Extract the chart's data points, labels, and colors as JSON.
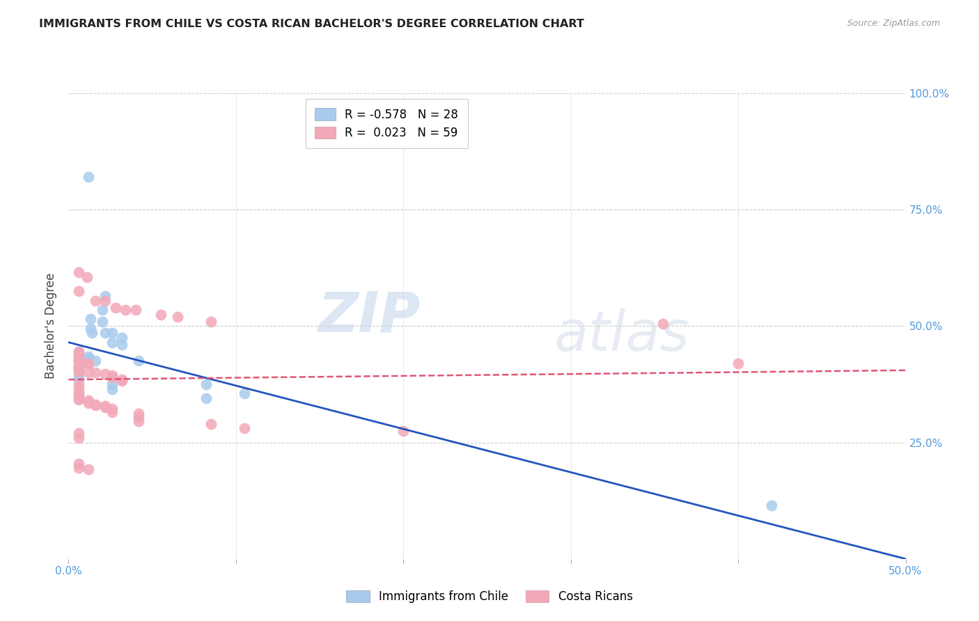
{
  "title": "IMMIGRANTS FROM CHILE VS COSTA RICAN BACHELOR'S DEGREE CORRELATION CHART",
  "source": "Source: ZipAtlas.com",
  "ylabel": "Bachelor's Degree",
  "legend_blue_r": "-0.578",
  "legend_blue_n": "28",
  "legend_pink_r": "0.023",
  "legend_pink_n": "59",
  "legend_blue_label": "Immigrants from Chile",
  "legend_pink_label": "Costa Ricans",
  "watermark_zip": "ZIP",
  "watermark_atlas": "atlas",
  "blue_color": "#A8CAED",
  "pink_color": "#F2A8B8",
  "blue_line_color": "#2255BB",
  "pink_line_color": "#E05575",
  "xlim": [
    0.0,
    0.5
  ],
  "ylim": [
    0.0,
    1.0
  ],
  "blue_points": [
    [
      0.012,
      0.82
    ],
    [
      0.022,
      0.565
    ],
    [
      0.02,
      0.535
    ],
    [
      0.013,
      0.515
    ],
    [
      0.02,
      0.51
    ],
    [
      0.013,
      0.495
    ],
    [
      0.014,
      0.485
    ],
    [
      0.022,
      0.485
    ],
    [
      0.026,
      0.485
    ],
    [
      0.032,
      0.475
    ],
    [
      0.026,
      0.465
    ],
    [
      0.032,
      0.46
    ],
    [
      0.006,
      0.445
    ],
    [
      0.012,
      0.435
    ],
    [
      0.012,
      0.43
    ],
    [
      0.006,
      0.425
    ],
    [
      0.016,
      0.425
    ],
    [
      0.042,
      0.425
    ],
    [
      0.006,
      0.415
    ],
    [
      0.006,
      0.405
    ],
    [
      0.006,
      0.395
    ],
    [
      0.006,
      0.385
    ],
    [
      0.026,
      0.375
    ],
    [
      0.082,
      0.375
    ],
    [
      0.026,
      0.365
    ],
    [
      0.105,
      0.355
    ],
    [
      0.082,
      0.345
    ],
    [
      0.42,
      0.115
    ]
  ],
  "pink_points": [
    [
      0.006,
      0.615
    ],
    [
      0.011,
      0.605
    ],
    [
      0.006,
      0.575
    ],
    [
      0.016,
      0.555
    ],
    [
      0.022,
      0.555
    ],
    [
      0.028,
      0.54
    ],
    [
      0.034,
      0.535
    ],
    [
      0.04,
      0.535
    ],
    [
      0.055,
      0.525
    ],
    [
      0.065,
      0.52
    ],
    [
      0.085,
      0.51
    ],
    [
      0.355,
      0.505
    ],
    [
      0.006,
      0.445
    ],
    [
      0.006,
      0.44
    ],
    [
      0.006,
      0.435
    ],
    [
      0.006,
      0.43
    ],
    [
      0.006,
      0.43
    ],
    [
      0.006,
      0.425
    ],
    [
      0.007,
      0.42
    ],
    [
      0.012,
      0.42
    ],
    [
      0.012,
      0.418
    ],
    [
      0.006,
      0.415
    ],
    [
      0.006,
      0.412
    ],
    [
      0.006,
      0.41
    ],
    [
      0.006,
      0.405
    ],
    [
      0.006,
      0.402
    ],
    [
      0.012,
      0.4
    ],
    [
      0.016,
      0.4
    ],
    [
      0.022,
      0.398
    ],
    [
      0.026,
      0.395
    ],
    [
      0.026,
      0.39
    ],
    [
      0.032,
      0.385
    ],
    [
      0.032,
      0.382
    ],
    [
      0.006,
      0.375
    ],
    [
      0.006,
      0.365
    ],
    [
      0.006,
      0.355
    ],
    [
      0.006,
      0.352
    ],
    [
      0.006,
      0.345
    ],
    [
      0.006,
      0.342
    ],
    [
      0.012,
      0.34
    ],
    [
      0.012,
      0.335
    ],
    [
      0.016,
      0.332
    ],
    [
      0.016,
      0.33
    ],
    [
      0.022,
      0.328
    ],
    [
      0.022,
      0.325
    ],
    [
      0.026,
      0.322
    ],
    [
      0.026,
      0.315
    ],
    [
      0.042,
      0.312
    ],
    [
      0.042,
      0.305
    ],
    [
      0.042,
      0.295
    ],
    [
      0.085,
      0.29
    ],
    [
      0.105,
      0.28
    ],
    [
      0.006,
      0.27
    ],
    [
      0.006,
      0.26
    ],
    [
      0.006,
      0.205
    ],
    [
      0.006,
      0.195
    ],
    [
      0.012,
      0.192
    ],
    [
      0.4,
      0.42
    ],
    [
      0.2,
      0.275
    ]
  ],
  "blue_regression": [
    0.465,
    -0.93
  ],
  "pink_regression": [
    0.385,
    0.04
  ]
}
